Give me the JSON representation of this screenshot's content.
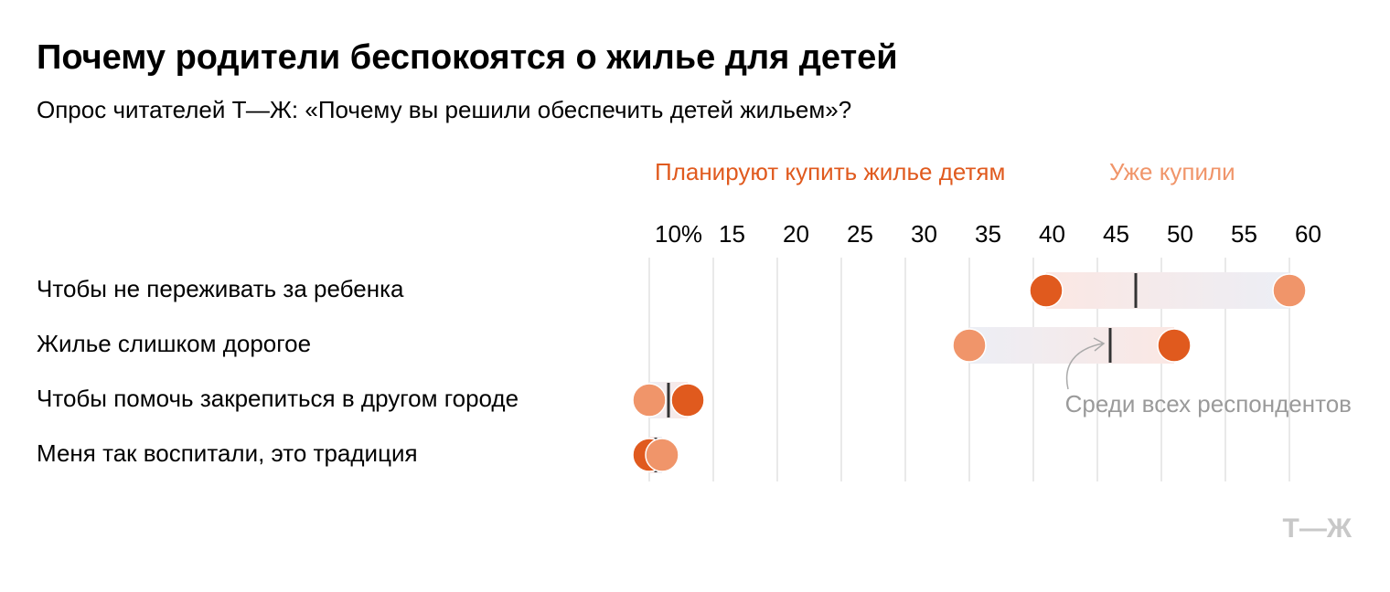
{
  "chart_data": {
    "type": "dumbbell",
    "title": "Почему родители беспокоятся о жилье для детей",
    "subtitle": "Опрос читателей Т—Ж: «Почему вы решили обеспечить детей жильем»?",
    "categories": [
      "Чтобы не переживать за ребенка",
      "Жилье слишком дорогое",
      "Чтобы помочь закрепиться в другом городе",
      "Меня так воспитали, это традиция"
    ],
    "series": [
      {
        "name": "Планируют купить жилье детям",
        "color": "#e05a1e",
        "values": [
          41,
          51,
          13,
          10
        ]
      },
      {
        "name": "Уже купили",
        "color": "#f0956a",
        "values": [
          60,
          35,
          10,
          11
        ]
      }
    ],
    "average": {
      "name": "Среди всех респондентов",
      "color": "#333333",
      "values": [
        48,
        46,
        11.5,
        10.5
      ]
    },
    "xlim": [
      10,
      60
    ],
    "xticks": [
      {
        "value": 10,
        "label": "10%"
      },
      15,
      20,
      25,
      30,
      35,
      40,
      45,
      50,
      55,
      60
    ],
    "grid": true,
    "logo": "Т—Ж"
  }
}
